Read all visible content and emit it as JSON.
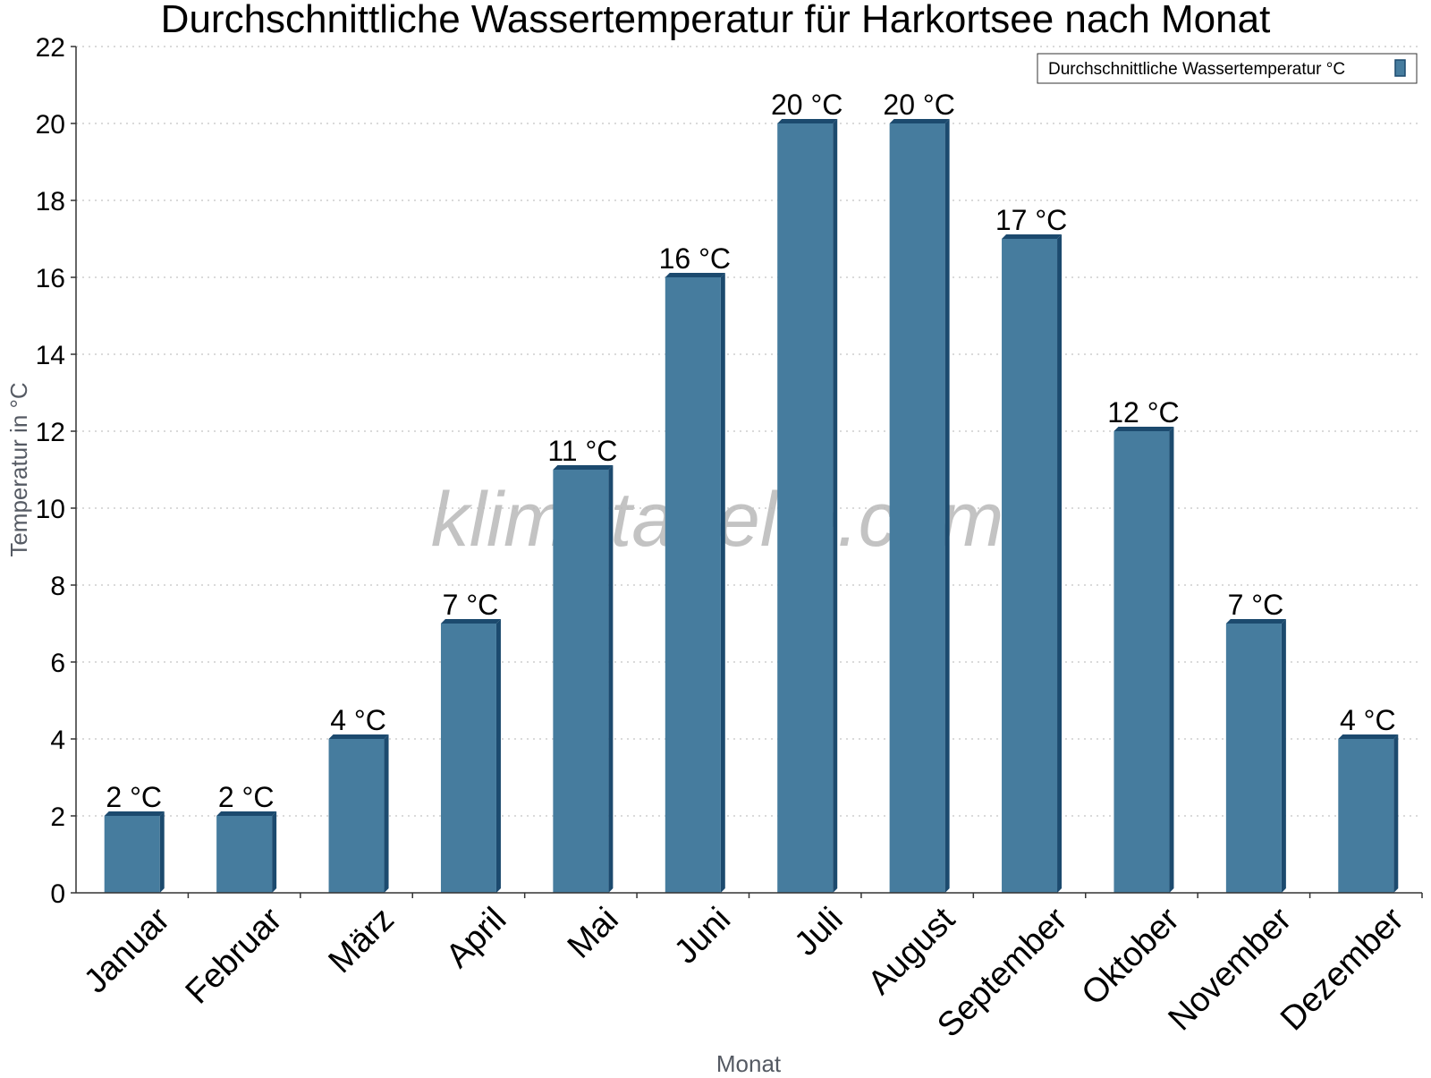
{
  "chart_data": {
    "type": "bar",
    "title": "Durchschnittliche Wassertemperatur für Harkortsee nach Monat",
    "xlabel": "Monat",
    "ylabel": "Temperatur in °C",
    "ylim": [
      0,
      22
    ],
    "yticks": [
      0,
      2,
      4,
      6,
      8,
      10,
      12,
      14,
      16,
      18,
      20,
      22
    ],
    "grid": true,
    "legend_position": "top-right",
    "categories": [
      "Januar",
      "Februar",
      "März",
      "April",
      "Mai",
      "Juni",
      "Juli",
      "August",
      "September",
      "Oktober",
      "November",
      "Dezember"
    ],
    "series": [
      {
        "name": "Durchschnittliche Wassertemperatur °C",
        "values": [
          2,
          2,
          4,
          7,
          11,
          16,
          20,
          20,
          17,
          12,
          7,
          4
        ],
        "labels": [
          "2 °C",
          "2 °C",
          "4 °C",
          "7 °C",
          "11 °C",
          "16 °C",
          "20 °C",
          "20 °C",
          "17 °C",
          "12 °C",
          "7 °C",
          "4 °C"
        ],
        "color": "#467c9e",
        "shade_color": "#1c4a6e"
      }
    ],
    "watermark": "klimatabelle.com"
  }
}
